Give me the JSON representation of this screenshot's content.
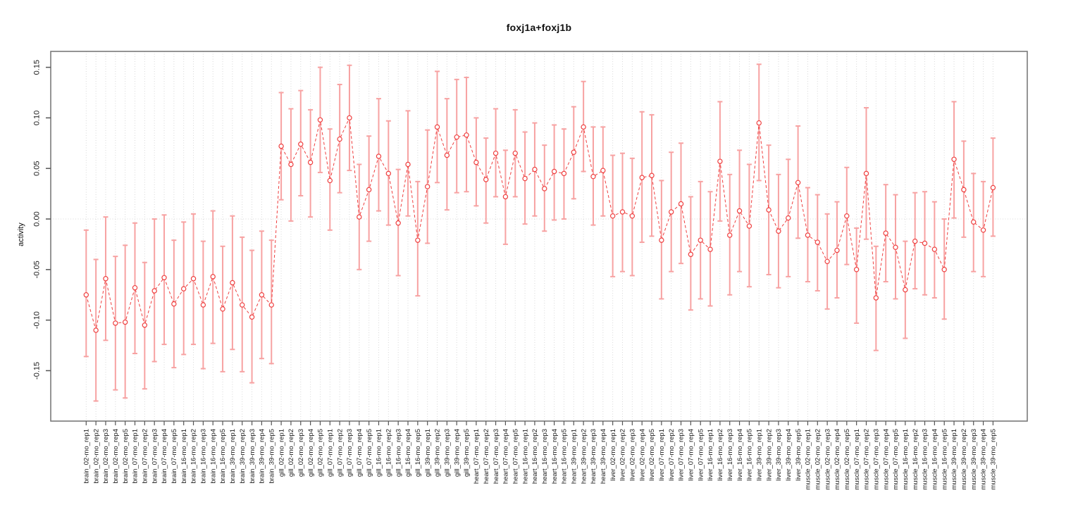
{
  "title": "foxj1a+foxj1b",
  "chart_data": {
    "type": "line",
    "subtype": "points-with-error-bars",
    "title": "foxj1a+foxj1b",
    "xlabel": "",
    "ylabel": "activity",
    "ylim": [
      -0.2,
      0.166
    ],
    "yticks": [
      0.15,
      0.1,
      0.05,
      0.0,
      -0.05,
      -0.1,
      -0.15
    ],
    "ytick_labels": [
      "0.15",
      "0.10",
      "0.05",
      "0.00",
      "-0.05",
      "-0.10",
      "-0.15"
    ],
    "grid": "vertical dotted gridline at every category; horizontal dotted line at 0 only",
    "legend_position": "none",
    "marker": "open-circle",
    "line_style": "dashed",
    "colors": {
      "series": "#ef3f3f",
      "error_bar": "#f7a2a2",
      "grid": "#d8d8d8",
      "box": "#7a7a7a",
      "tick": "#555555",
      "tick_label": "#1a1a1a"
    },
    "categories": [
      "brain_02-mo_rep1",
      "brain_02-mo_rep2",
      "brain_02-mo_rep3",
      "brain_02-mo_rep4",
      "brain_02-mo_rep5",
      "brain_07-mo_rep1",
      "brain_07-mo_rep2",
      "brain_07-mo_rep3",
      "brain_07-mo_rep4",
      "brain_07-mo_rep5",
      "brain_16-mo_rep1",
      "brain_16-mo_rep2",
      "brain_16-mo_rep3",
      "brain_16-mo_rep4",
      "brain_16-mo_rep5",
      "brain_39-mo_rep1",
      "brain_39-mo_rep2",
      "brain_39-mo_rep3",
      "brain_39-mo_rep4",
      "brain_39-mo_rep5",
      "gill_02-mo_rep1",
      "gill_02-mo_rep2",
      "gill_02-mo_rep3",
      "gill_02-mo_rep4",
      "gill_02-mo_rep5",
      "gill_07-mo_rep1",
      "gill_07-mo_rep2",
      "gill_07-mo_rep3",
      "gill_07-mo_rep4",
      "gill_07-mo_rep5",
      "gill_16-mo_rep1",
      "gill_16-mo_rep2",
      "gill_16-mo_rep3",
      "gill_16-mo_rep4",
      "gill_16-mo_rep5",
      "gill_39-mo_rep1",
      "gill_39-mo_rep2",
      "gill_39-mo_rep3",
      "gill_39-mo_rep4",
      "gill_39-mo_rep5",
      "heart_07-mo_rep1",
      "heart_07-mo_rep2",
      "heart_07-mo_rep3",
      "heart_07-mo_rep4",
      "heart_07-mo_rep5",
      "heart_16-mo_rep1",
      "heart_16-mo_rep2",
      "heart_16-mo_rep3",
      "heart_16-mo_rep4",
      "heart_16-mo_rep5",
      "heart_39-mo_rep1",
      "heart_39-mo_rep2",
      "heart_39-mo_rep3",
      "heart_39-mo_rep4",
      "liver_02-mo_rep1",
      "liver_02-mo_rep2",
      "liver_02-mo_rep3",
      "liver_02-mo_rep4",
      "liver_02-mo_rep5",
      "liver_07-mo_rep1",
      "liver_07-mo_rep2",
      "liver_07-mo_rep3",
      "liver_07-mo_rep4",
      "liver_07-mo_rep5",
      "liver_16-mo_rep1",
      "liver_16-mo_rep2",
      "liver_16-mo_rep3",
      "liver_16-mo_rep4",
      "liver_16-mo_rep5",
      "liver_39-mo_rep1",
      "liver_39-mo_rep2",
      "liver_39-mo_rep3",
      "liver_39-mo_rep4",
      "liver_39-mo_rep5",
      "muscle_02-mo_rep1",
      "muscle_02-mo_rep2",
      "muscle_02-mo_rep3",
      "muscle_02-mo_rep4",
      "muscle_02-mo_rep5",
      "muscle_07-mo_rep1",
      "muscle_07-mo_rep2",
      "muscle_07-mo_rep3",
      "muscle_07-mo_rep4",
      "muscle_07-mo_rep5",
      "muscle_16-mo_rep1",
      "muscle_16-mo_rep2",
      "muscle_16-mo_rep3",
      "muscle_16-mo_rep4",
      "muscle_16-mo_rep5",
      "muscle_39-mo_rep1",
      "muscle_39-mo_rep2",
      "muscle_39-mo_rep3",
      "muscle_39-mo_rep4",
      "muscle_39-mo_rep5"
    ],
    "values": [
      -0.075,
      -0.11,
      -0.059,
      -0.103,
      -0.102,
      -0.068,
      -0.105,
      -0.071,
      -0.058,
      -0.084,
      -0.069,
      -0.059,
      -0.085,
      -0.057,
      -0.089,
      -0.063,
      -0.085,
      -0.097,
      -0.075,
      -0.085,
      0.072,
      0.054,
      0.074,
      0.056,
      0.098,
      0.038,
      0.079,
      0.1,
      0.002,
      0.029,
      0.062,
      0.045,
      -0.004,
      0.054,
      -0.021,
      0.032,
      0.091,
      0.063,
      0.081,
      0.083,
      0.056,
      0.039,
      0.065,
      0.022,
      0.065,
      0.04,
      0.049,
      0.03,
      0.047,
      0.045,
      0.066,
      0.091,
      0.042,
      0.048,
      0.003,
      0.007,
      0.003,
      0.041,
      0.043,
      -0.021,
      0.007,
      0.015,
      -0.035,
      -0.021,
      -0.03,
      0.057,
      -0.016,
      0.008,
      -0.007,
      0.095,
      0.009,
      -0.012,
      0.001,
      0.036,
      -0.016,
      -0.023,
      -0.042,
      -0.031,
      0.003,
      -0.05,
      0.045,
      -0.078,
      -0.014,
      -0.028,
      -0.07,
      -0.022,
      -0.024,
      -0.03,
      -0.05,
      0.059,
      0.029,
      -0.003,
      -0.011,
      0.031
    ],
    "lower": [
      -0.136,
      -0.18,
      -0.12,
      -0.169,
      -0.177,
      -0.133,
      -0.168,
      -0.141,
      -0.124,
      -0.147,
      -0.134,
      -0.124,
      -0.148,
      -0.123,
      -0.151,
      -0.129,
      -0.151,
      -0.162,
      -0.138,
      -0.143,
      0.019,
      -0.002,
      0.023,
      0.002,
      0.046,
      -0.011,
      0.026,
      0.048,
      -0.05,
      -0.022,
      0.008,
      -0.006,
      -0.056,
      0.003,
      -0.076,
      -0.024,
      0.036,
      0.009,
      0.026,
      0.027,
      0.013,
      -0.004,
      0.022,
      -0.025,
      0.022,
      -0.005,
      0.003,
      -0.012,
      -0.001,
      0.0,
      0.02,
      0.047,
      -0.006,
      0.003,
      -0.057,
      -0.052,
      -0.056,
      -0.023,
      -0.017,
      -0.079,
      -0.052,
      -0.044,
      -0.09,
      -0.079,
      -0.086,
      -0.002,
      -0.075,
      -0.052,
      -0.067,
      0.038,
      -0.055,
      -0.068,
      -0.057,
      -0.019,
      -0.062,
      -0.071,
      -0.089,
      -0.078,
      -0.045,
      -0.103,
      -0.02,
      -0.13,
      -0.062,
      -0.079,
      -0.118,
      -0.069,
      -0.075,
      -0.078,
      -0.099,
      0.001,
      -0.018,
      -0.052,
      -0.057,
      -0.017
    ],
    "upper": [
      -0.011,
      -0.04,
      0.002,
      -0.037,
      -0.026,
      -0.004,
      -0.043,
      0.0,
      0.004,
      -0.021,
      -0.003,
      0.005,
      -0.022,
      0.008,
      -0.027,
      0.003,
      -0.018,
      -0.031,
      -0.012,
      -0.021,
      0.125,
      0.109,
      0.127,
      0.108,
      0.15,
      0.089,
      0.133,
      0.152,
      0.054,
      0.082,
      0.119,
      0.097,
      0.049,
      0.107,
      0.037,
      0.088,
      0.146,
      0.119,
      0.138,
      0.14,
      0.1,
      0.08,
      0.109,
      0.068,
      0.108,
      0.086,
      0.095,
      0.073,
      0.093,
      0.089,
      0.111,
      0.136,
      0.091,
      0.091,
      0.063,
      0.065,
      0.06,
      0.106,
      0.103,
      0.038,
      0.066,
      0.075,
      0.022,
      0.037,
      0.027,
      0.116,
      0.044,
      0.068,
      0.054,
      0.153,
      0.073,
      0.044,
      0.059,
      0.092,
      0.031,
      0.024,
      0.005,
      0.017,
      0.051,
      -0.009,
      0.11,
      -0.027,
      0.034,
      0.024,
      -0.022,
      0.026,
      0.027,
      0.017,
      0.0,
      0.116,
      0.077,
      0.045,
      0.037,
      0.08
    ]
  }
}
